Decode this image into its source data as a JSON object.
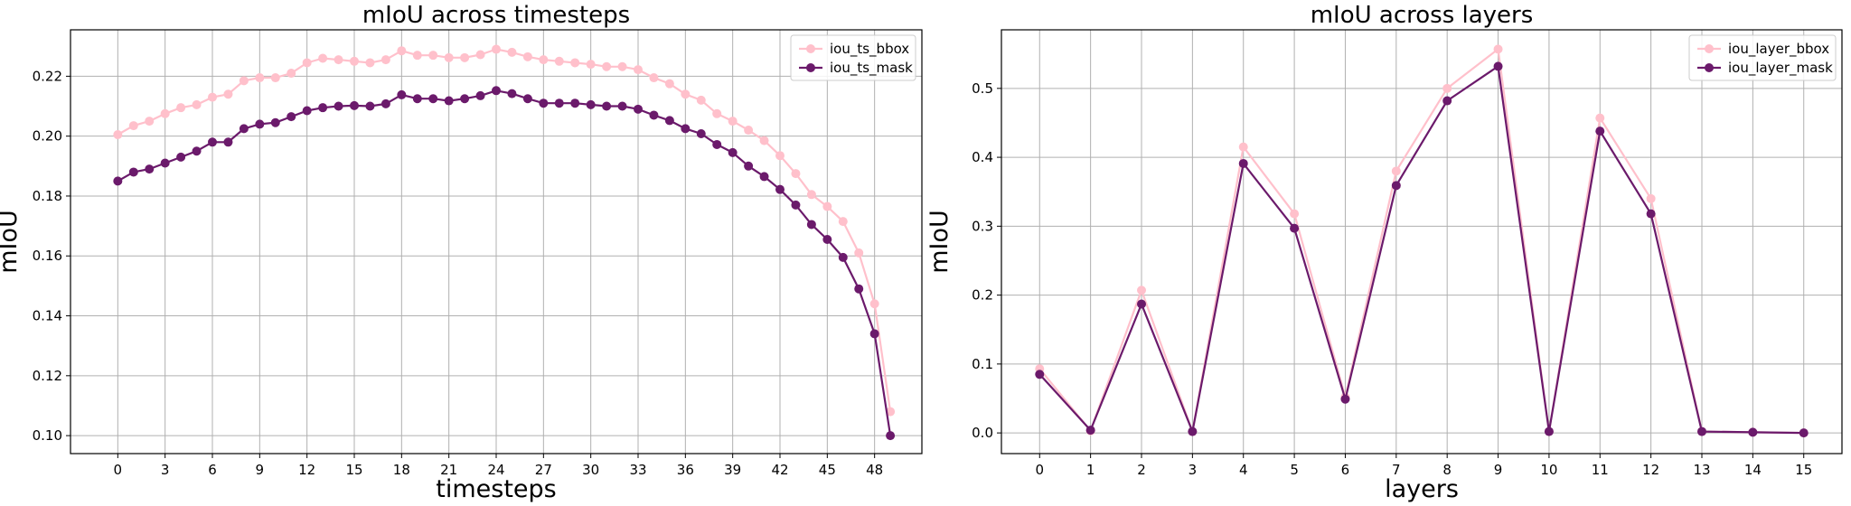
{
  "colors": {
    "bbox": "#ffc0cb",
    "mask": "#6b1a6b"
  },
  "chart_data": [
    {
      "type": "line",
      "title": "mIoU across timesteps",
      "xlabel": "timesteps",
      "ylabel": "mIoU",
      "xlim": [
        -3,
        51
      ],
      "ylim": [
        0.094,
        0.2355
      ],
      "xticks": [
        0,
        3,
        6,
        9,
        12,
        15,
        18,
        21,
        24,
        27,
        30,
        33,
        36,
        39,
        42,
        45,
        48
      ],
      "yticks": [
        0.1,
        0.12,
        0.14,
        0.16,
        0.18,
        0.2,
        0.22
      ],
      "ytick_labels": [
        "0.10",
        "0.12",
        "0.14",
        "0.16",
        "0.18",
        "0.20",
        "0.22"
      ],
      "grid": true,
      "legend": "top-right",
      "x": [
        0,
        1,
        2,
        3,
        4,
        5,
        6,
        7,
        8,
        9,
        10,
        11,
        12,
        13,
        14,
        15,
        16,
        17,
        18,
        19,
        20,
        21,
        22,
        23,
        24,
        25,
        26,
        27,
        28,
        29,
        30,
        31,
        32,
        33,
        34,
        35,
        36,
        37,
        38,
        39,
        40,
        41,
        42,
        43,
        44,
        45,
        46,
        47,
        48,
        49
      ],
      "series": [
        {
          "name": "iou_ts_bbox",
          "color": "#ffc0cb",
          "values": [
            0.2005,
            0.2035,
            0.205,
            0.2075,
            0.2095,
            0.2105,
            0.213,
            0.214,
            0.2185,
            0.2195,
            0.2195,
            0.221,
            0.2245,
            0.226,
            0.2255,
            0.225,
            0.2245,
            0.2255,
            0.2285,
            0.227,
            0.227,
            0.2262,
            0.2262,
            0.2272,
            0.229,
            0.228,
            0.2265,
            0.2255,
            0.225,
            0.2245,
            0.224,
            0.2232,
            0.2232,
            0.2222,
            0.2195,
            0.2175,
            0.214,
            0.212,
            0.2075,
            0.205,
            0.202,
            0.1985,
            0.1935,
            0.1875,
            0.1805,
            0.1765,
            0.1715,
            0.161,
            0.144,
            0.108
          ]
        },
        {
          "name": "iou_ts_mask",
          "color": "#6b1a6b",
          "values": [
            0.185,
            0.188,
            0.189,
            0.191,
            0.193,
            0.195,
            0.198,
            0.198,
            0.2025,
            0.204,
            0.2045,
            0.2065,
            0.2085,
            0.2095,
            0.21,
            0.2102,
            0.21,
            0.2108,
            0.2138,
            0.2125,
            0.2125,
            0.2118,
            0.2125,
            0.2135,
            0.2152,
            0.2142,
            0.2125,
            0.211,
            0.211,
            0.211,
            0.2105,
            0.21,
            0.21,
            0.209,
            0.207,
            0.2052,
            0.2025,
            0.2008,
            0.1972,
            0.1945,
            0.19,
            0.1865,
            0.1822,
            0.177,
            0.1705,
            0.1655,
            0.1595,
            0.149,
            0.134,
            0.1
          ]
        }
      ]
    },
    {
      "type": "line",
      "title": "mIoU across layers",
      "xlabel": "layers",
      "ylabel": "mIoU",
      "xlim": [
        -0.75,
        15.75
      ],
      "ylim": [
        -0.03,
        0.585
      ],
      "xticks": [
        0,
        1,
        2,
        3,
        4,
        5,
        6,
        7,
        8,
        9,
        10,
        11,
        12,
        13,
        14,
        15
      ],
      "yticks": [
        0.0,
        0.1,
        0.2,
        0.3,
        0.4,
        0.5
      ],
      "ytick_labels": [
        "0.0",
        "0.1",
        "0.2",
        "0.3",
        "0.4",
        "0.5"
      ],
      "grid": true,
      "legend": "top-right",
      "x": [
        0,
        1,
        2,
        3,
        4,
        5,
        6,
        7,
        8,
        9,
        10,
        11,
        12,
        13,
        14,
        15
      ],
      "series": [
        {
          "name": "iou_layer_bbox",
          "color": "#ffc0cb",
          "values": [
            0.093,
            0.003,
            0.207,
            0.002,
            0.415,
            0.318,
            0.052,
            0.38,
            0.5,
            0.557,
            0.002,
            0.457,
            0.34,
            0.002,
            0.001,
            0.0
          ]
        },
        {
          "name": "iou_layer_mask",
          "color": "#6b1a6b",
          "values": [
            0.085,
            0.004,
            0.187,
            0.002,
            0.391,
            0.297,
            0.049,
            0.359,
            0.482,
            0.532,
            0.002,
            0.438,
            0.318,
            0.002,
            0.001,
            0.0
          ]
        }
      ]
    }
  ]
}
